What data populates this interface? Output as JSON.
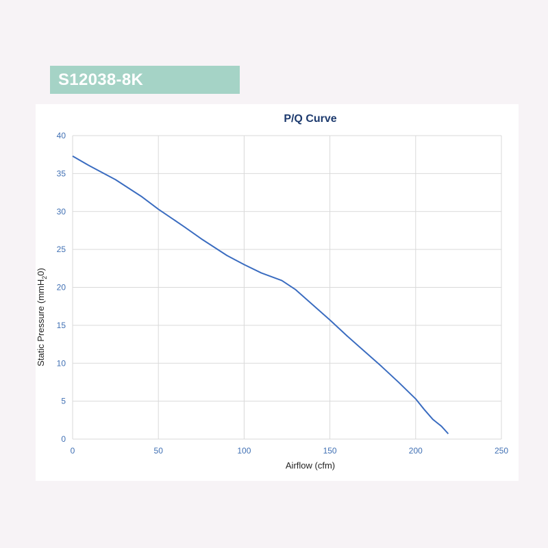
{
  "banner": {
    "model": "S12038-8K"
  },
  "colors": {
    "banner_bg": "#a5d3c6",
    "line": "#3a6cc0",
    "grid": "#d9d9d9",
    "tick": "#3f6fb3",
    "title": "#1d3a6e"
  },
  "chart_data": {
    "type": "line",
    "title": "P/Q Curve",
    "xlabel": "Airflow (cfm)",
    "ylabel": "Static Pressure (mmH2O)",
    "ylabel_parts": {
      "pre": "Static Pressure (mmH",
      "sub": "2",
      "post": "0)"
    },
    "xlim": [
      0,
      250
    ],
    "ylim": [
      0,
      40
    ],
    "xticks": [
      0,
      50,
      100,
      150,
      200,
      250
    ],
    "yticks": [
      0,
      5,
      10,
      15,
      20,
      25,
      30,
      35,
      40
    ],
    "grid": true,
    "series": [
      {
        "x": [
          0,
          10,
          25,
          40,
          50,
          65,
          75,
          90,
          100,
          110,
          122,
          130,
          140,
          150,
          160,
          170,
          180,
          190,
          200,
          205,
          210,
          215,
          219
        ],
        "y": [
          37.3,
          36.0,
          34.2,
          32.0,
          30.3,
          28.0,
          26.4,
          24.2,
          23.0,
          21.9,
          20.9,
          19.7,
          17.7,
          15.7,
          13.6,
          11.6,
          9.6,
          7.5,
          5.3,
          3.9,
          2.6,
          1.7,
          0.7
        ]
      }
    ]
  }
}
